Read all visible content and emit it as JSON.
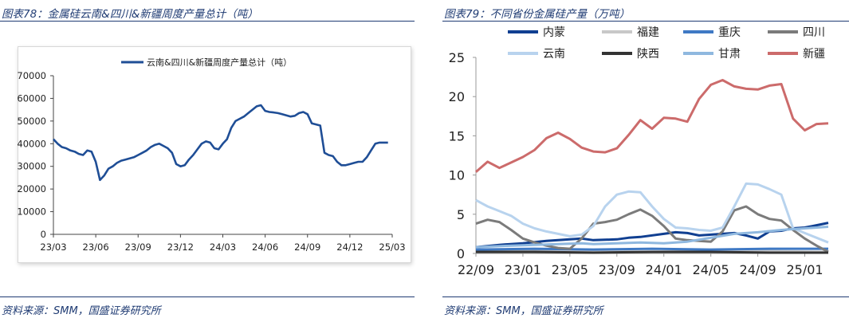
{
  "left": {
    "figure_title": "图表78：金属硅云南&四川&新疆周度产量总计（吨）",
    "source": "资料来源：SMM，国盛证券研究所"
  },
  "right": {
    "figure_title": "图表79：不同省份金属硅产量（万吨）",
    "source": "资料来源：SMM，国盛证券研究所"
  },
  "chart_data": [
    {
      "type": "line",
      "title": "",
      "xlabel": "",
      "ylabel": "",
      "x_tick_labels": [
        "23/03",
        "23/06",
        "23/09",
        "23/12",
        "24/03",
        "24/06",
        "24/09",
        "24/12",
        "25/03"
      ],
      "y_ticks": [
        0,
        10000,
        20000,
        30000,
        40000,
        50000,
        60000,
        70000
      ],
      "ylim": [
        0,
        70000
      ],
      "xlim": [
        0,
        24
      ],
      "grid": false,
      "legend_position": "top-right",
      "series": [
        {
          "name": "云南&四川&新疆周度产量总计（吨）",
          "color": "#1f4e96",
          "x": [
            0,
            0.3,
            0.6,
            0.9,
            1.2,
            1.5,
            1.8,
            2.1,
            2.4,
            2.7,
            3.0,
            3.3,
            3.6,
            3.9,
            4.2,
            4.5,
            4.8,
            5.1,
            5.4,
            5.7,
            6.0,
            6.3,
            6.6,
            6.9,
            7.2,
            7.5,
            7.8,
            8.1,
            8.4,
            8.7,
            9.0,
            9.3,
            9.6,
            9.9,
            10.2,
            10.5,
            10.8,
            11.1,
            11.4,
            11.7,
            12.0,
            12.3,
            12.6,
            12.9,
            13.2,
            13.5,
            13.8,
            14.1,
            14.4,
            14.7,
            15.0,
            15.3,
            15.6,
            15.9,
            16.2,
            16.5,
            16.8,
            17.1,
            17.4,
            17.7,
            18.0,
            18.3,
            18.6,
            18.9,
            19.2,
            19.5,
            19.8,
            20.1,
            20.4,
            20.7,
            21.0,
            21.3,
            21.6,
            21.9,
            22.2,
            22.5,
            22.8,
            23.1,
            23.4,
            23.7
          ],
          "y": [
            42000,
            40000,
            38500,
            38000,
            37000,
            36500,
            35500,
            35000,
            37000,
            36500,
            32000,
            24000,
            26000,
            29000,
            30000,
            31500,
            32500,
            33000,
            33500,
            34000,
            35000,
            36000,
            37000,
            38500,
            39500,
            40000,
            39000,
            38000,
            36000,
            31000,
            30000,
            30500,
            33000,
            35000,
            37500,
            40000,
            41000,
            40500,
            38000,
            37500,
            40000,
            42000,
            47000,
            50000,
            51000,
            52000,
            53500,
            55000,
            56500,
            57000,
            54500,
            54000,
            53800,
            53500,
            53000,
            52500,
            52000,
            52300,
            53500,
            54000,
            53000,
            49000,
            48500,
            48000,
            36000,
            35000,
            34500,
            32000,
            30500,
            30500,
            31000,
            31500,
            32000,
            32000,
            34000,
            37000,
            40000,
            40500,
            40500,
            40500
          ]
        }
      ]
    },
    {
      "type": "line",
      "title": "",
      "xlabel": "",
      "ylabel": "",
      "x_tick_labels": [
        "22/09",
        "23/01",
        "23/05",
        "23/09",
        "24/01",
        "24/05",
        "24/09",
        "25/01"
      ],
      "y_ticks": [
        0,
        5,
        10,
        15,
        20,
        25
      ],
      "ylim": [
        0,
        25
      ],
      "xlim": [
        0,
        30
      ],
      "grid": false,
      "legend_position": "top",
      "series": [
        {
          "name": "内蒙",
          "color": "#103f91",
          "x": [
            0,
            2,
            4,
            6,
            8,
            9,
            10,
            12,
            13,
            14,
            16,
            17,
            18,
            19,
            20,
            21,
            22,
            23,
            24,
            25,
            26,
            27,
            28,
            29,
            30
          ],
          "y": [
            0.8,
            1.1,
            1.3,
            1.6,
            1.8,
            1.9,
            1.7,
            1.8,
            2.0,
            2.1,
            2.5,
            2.7,
            2.6,
            2.3,
            2.4,
            2.5,
            2.6,
            2.3,
            1.9,
            2.8,
            2.9,
            3.2,
            3.3,
            3.6,
            3.9
          ]
        },
        {
          "name": "福建",
          "color": "#c8c8c8",
          "x": [
            0,
            5,
            10,
            15,
            20,
            25,
            30
          ],
          "y": [
            0.3,
            0.4,
            0.3,
            0.2,
            0.3,
            0.3,
            0.2
          ]
        },
        {
          "name": "重庆",
          "color": "#3f79c4",
          "x": [
            0,
            5,
            10,
            15,
            20,
            25,
            30
          ],
          "y": [
            0.5,
            0.6,
            0.5,
            0.6,
            0.5,
            0.6,
            0.6
          ]
        },
        {
          "name": "四川",
          "color": "#7b7b7b",
          "x": [
            0,
            1,
            2,
            3,
            4,
            5,
            6,
            7,
            8,
            9,
            10,
            11,
            12,
            13,
            14,
            15,
            16,
            17,
            18,
            19,
            20,
            21,
            22,
            23,
            24,
            25,
            26,
            27,
            28,
            29,
            30
          ],
          "y": [
            3.8,
            4.3,
            4.0,
            3.0,
            1.9,
            1.4,
            1.0,
            0.7,
            0.6,
            1.9,
            3.8,
            4.0,
            4.3,
            5.0,
            5.6,
            4.8,
            3.5,
            1.9,
            1.7,
            1.6,
            1.5,
            2.8,
            5.5,
            6.0,
            5.0,
            4.4,
            4.2,
            3.0,
            1.9,
            1.0,
            0.2
          ]
        },
        {
          "name": "云南",
          "color": "#b8d3ee",
          "x": [
            0,
            1,
            2,
            3,
            4,
            5,
            6,
            7,
            8,
            9,
            10,
            11,
            12,
            13,
            14,
            15,
            16,
            17,
            18,
            19,
            20,
            21,
            22,
            23,
            24,
            25,
            26,
            27,
            28,
            29,
            30
          ],
          "y": [
            6.8,
            6.0,
            5.4,
            4.8,
            3.8,
            3.2,
            2.8,
            2.5,
            2.2,
            2.4,
            3.5,
            6.0,
            7.5,
            7.9,
            7.8,
            6.0,
            4.4,
            3.3,
            3.2,
            3.0,
            2.9,
            3.3,
            6.0,
            8.9,
            8.8,
            8.2,
            7.5,
            3.2,
            2.6,
            2.0,
            1.4
          ]
        },
        {
          "name": "陕西",
          "color": "#333333",
          "x": [
            0,
            5,
            10,
            15,
            20,
            25,
            30
          ],
          "y": [
            0.2,
            0.2,
            0.1,
            0.2,
            0.2,
            0.1,
            0.1
          ]
        },
        {
          "name": "甘肃",
          "color": "#8fb8df",
          "x": [
            0,
            3,
            5,
            7,
            9,
            10,
            12,
            14,
            16,
            18,
            20,
            22,
            24,
            26,
            28,
            30
          ],
          "y": [
            0.8,
            1.0,
            1.1,
            1.2,
            1.3,
            1.2,
            1.3,
            1.4,
            1.3,
            1.5,
            2.0,
            2.5,
            2.7,
            3.0,
            3.2,
            3.4
          ]
        },
        {
          "name": "新疆",
          "color": "#cc6b6b",
          "x": [
            0,
            1,
            2,
            3,
            4,
            5,
            6,
            7,
            8,
            9,
            10,
            11,
            12,
            13,
            14,
            15,
            16,
            17,
            18,
            19,
            20,
            21,
            22,
            23,
            24,
            25,
            26,
            27,
            28,
            29,
            30
          ],
          "y": [
            10.4,
            11.7,
            10.9,
            11.6,
            12.3,
            13.2,
            14.7,
            15.4,
            14.6,
            13.5,
            13.0,
            12.9,
            13.4,
            15.1,
            17.0,
            15.9,
            17.3,
            17.2,
            16.8,
            19.7,
            21.5,
            22.1,
            21.3,
            21.0,
            20.9,
            21.4,
            21.6,
            17.2,
            15.7,
            16.5,
            16.6
          ]
        }
      ]
    }
  ]
}
